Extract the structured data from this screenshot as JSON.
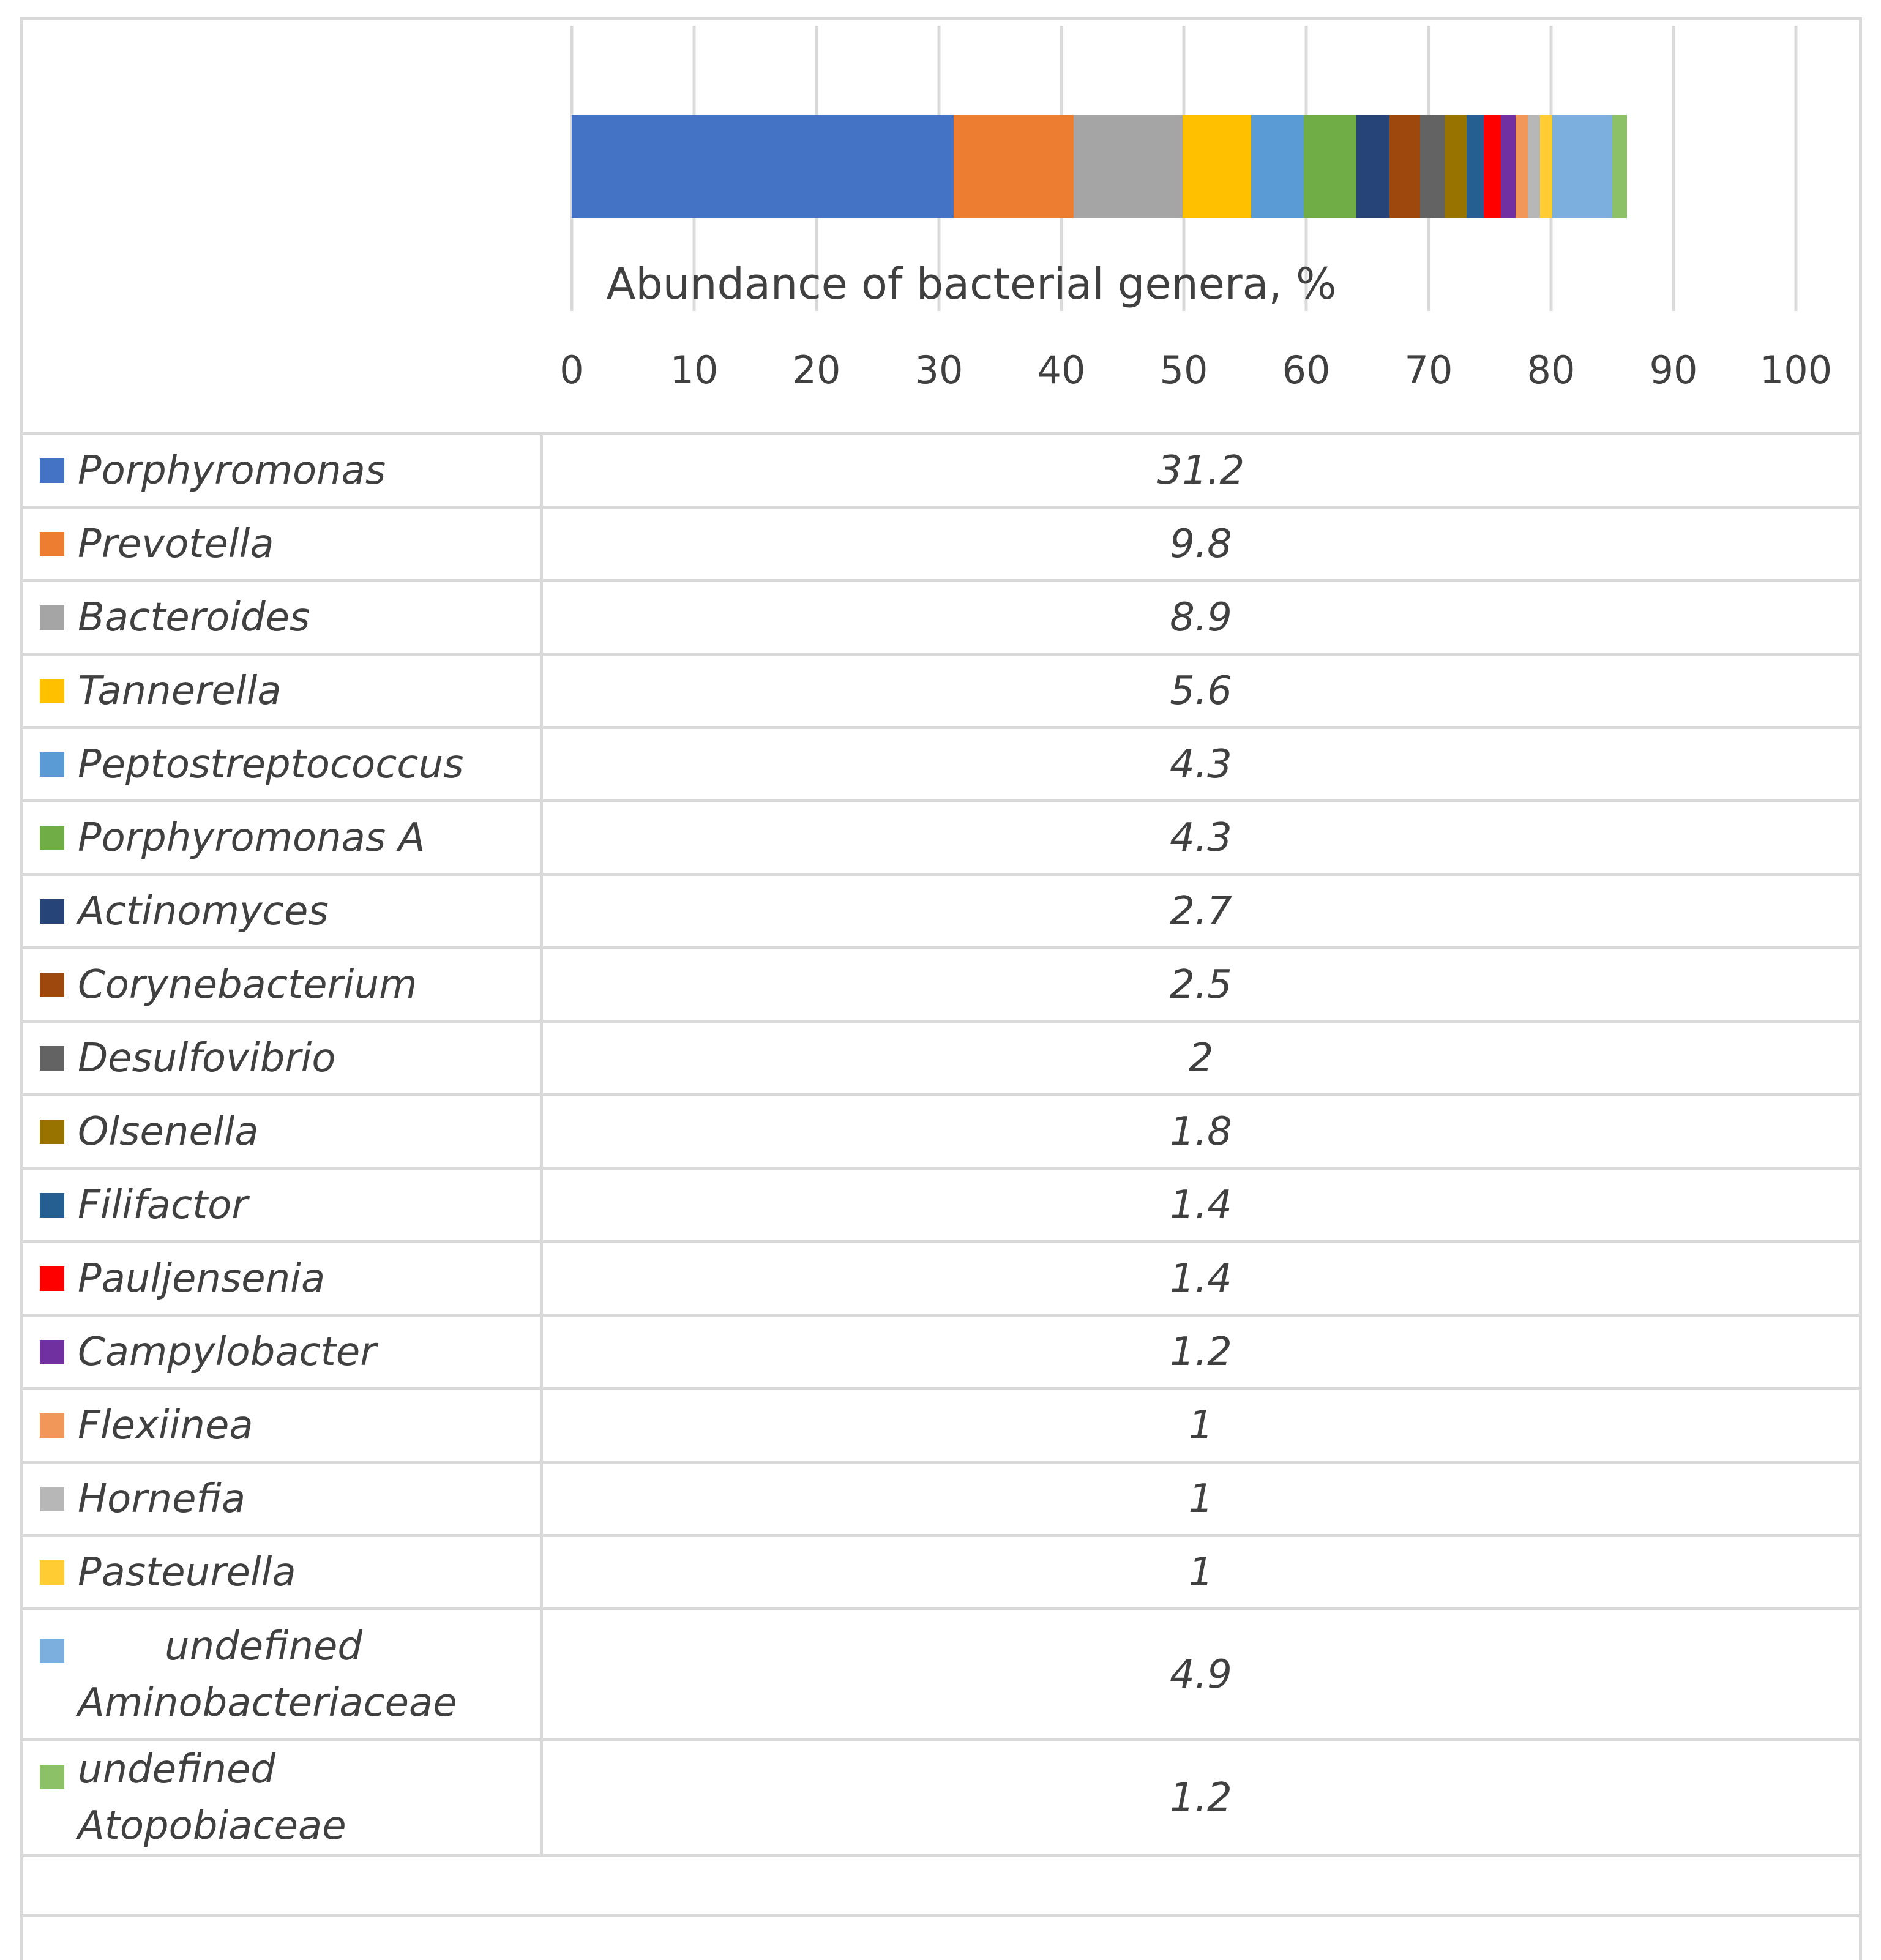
{
  "chart_data": {
    "type": "bar",
    "orientation": "horizontal-stacked",
    "xlabel": "Abundance of bacterial genera, %",
    "xlim": [
      0,
      100
    ],
    "ticks": [
      0,
      10,
      20,
      30,
      40,
      50,
      60,
      70,
      80,
      90,
      100
    ],
    "grid": true,
    "series": [
      {
        "name": "Porphyromonas",
        "value": 31.2,
        "display": "31.2",
        "color": "#4472C4"
      },
      {
        "name": "Prevotella",
        "value": 9.8,
        "display": "9.8",
        "color": "#ED7D31"
      },
      {
        "name": "Bacteroides",
        "value": 8.9,
        "display": "8.9",
        "color": "#A5A5A5"
      },
      {
        "name": "Tannerella",
        "value": 5.6,
        "display": "5.6",
        "color": "#FFC000"
      },
      {
        "name": "Peptostreptococcus",
        "value": 4.3,
        "display": "4.3",
        "color": "#5B9BD5"
      },
      {
        "name": "Porphyromonas A",
        "value": 4.3,
        "display": "4.3",
        "color": "#70AD47"
      },
      {
        "name": "Actinomyces",
        "value": 2.7,
        "display": "2.7",
        "color": "#264478"
      },
      {
        "name": "Corynebacterium",
        "value": 2.5,
        "display": "2.5",
        "color": "#9E480E"
      },
      {
        "name": "Desulfovibrio",
        "value": 2,
        "display": "2",
        "color": "#636363"
      },
      {
        "name": "Olsenella",
        "value": 1.8,
        "display": "1.8",
        "color": "#997300"
      },
      {
        "name": "Filifactor",
        "value": 1.4,
        "display": "1.4",
        "color": "#255E91"
      },
      {
        "name": "Pauljensenia",
        "value": 1.4,
        "display": "1.4",
        "color": "#FF0000"
      },
      {
        "name": "Campylobacter",
        "value": 1.2,
        "display": "1.2",
        "color": "#7030A0"
      },
      {
        "name": "Flexiinea",
        "value": 1,
        "display": "1",
        "color": "#F1975A"
      },
      {
        "name": "Hornefia",
        "value": 1,
        "display": "1",
        "color": "#B7B7B7"
      },
      {
        "name": "Pasteurella",
        "value": 1,
        "display": "1",
        "color": "#FFCD33"
      },
      {
        "name": "undefined Aminobacteriaceae",
        "value": 4.9,
        "display": "4.9",
        "color": "#7CAFDD"
      },
      {
        "name": "undefined Atopobiaceae",
        "value": 1.2,
        "display": "1.2",
        "color": "#8CC168"
      }
    ]
  }
}
